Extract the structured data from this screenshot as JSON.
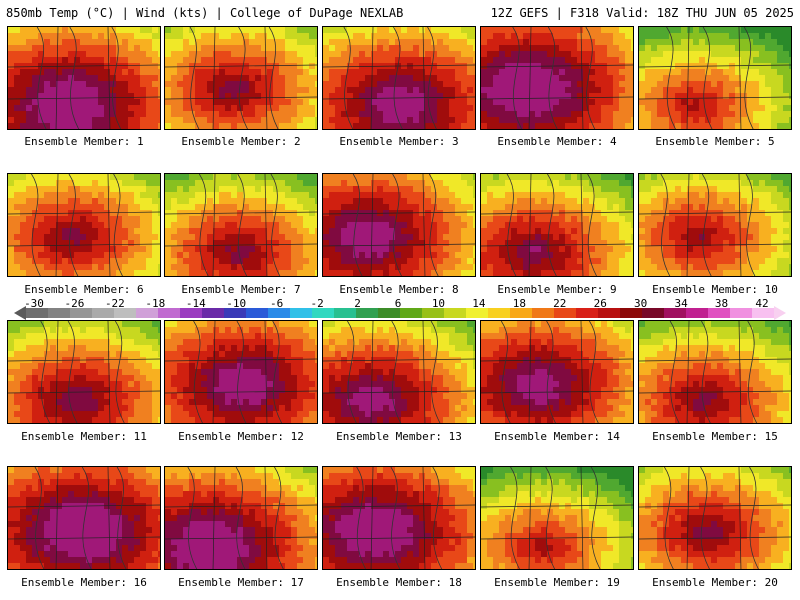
{
  "header": {
    "left": "850mb Temp (°C) | Wind (kts) | College of DuPage NEXLAB",
    "right": "12Z GEFS | F318 Valid: 18Z THU JUN 05 2025"
  },
  "panels": [
    {
      "label": "Ensemble Member: 1",
      "level": 0.78
    },
    {
      "label": "Ensemble Member: 2",
      "level": 0.55
    },
    {
      "label": "Ensemble Member: 3",
      "level": 0.72
    },
    {
      "label": "Ensemble Member: 4",
      "level": 0.8
    },
    {
      "label": "Ensemble Member: 5",
      "level": 0.45
    },
    {
      "label": "Ensemble Member: 6",
      "level": 0.55
    },
    {
      "label": "Ensemble Member: 7",
      "level": 0.55
    },
    {
      "label": "Ensemble Member: 8",
      "level": 0.72
    },
    {
      "label": "Ensemble Member: 9",
      "level": 0.6
    },
    {
      "label": "Ensemble Member: 10",
      "level": 0.5
    },
    {
      "label": "Ensemble Member: 11",
      "level": 0.6
    },
    {
      "label": "Ensemble Member: 12",
      "level": 0.72
    },
    {
      "label": "Ensemble Member: 13",
      "level": 0.68
    },
    {
      "label": "Ensemble Member: 14",
      "level": 0.7
    },
    {
      "label": "Ensemble Member: 15",
      "level": 0.55
    },
    {
      "label": "Ensemble Member: 16",
      "level": 0.8
    },
    {
      "label": "Ensemble Member: 17",
      "level": 0.78
    },
    {
      "label": "Ensemble Member: 18",
      "level": 0.78
    },
    {
      "label": "Ensemble Member: 19",
      "level": 0.45
    },
    {
      "label": "Ensemble Member: 20",
      "level": 0.55
    }
  ],
  "colorbar": {
    "labels": [
      "-30",
      "-26",
      "-22",
      "-18",
      "-14",
      "-10",
      "-6",
      "-2",
      "2",
      "6",
      "10",
      "14",
      "18",
      "22",
      "26",
      "30",
      "34",
      "38",
      "42"
    ],
    "colors": [
      "#6e6e6e",
      "#828282",
      "#969696",
      "#aaaaaa",
      "#bebebe",
      "#d0a0d8",
      "#c06ad0",
      "#9a3cc0",
      "#6a2aa8",
      "#3a3ab8",
      "#2a5ad8",
      "#2a8ae8",
      "#30c0e8",
      "#30d8c0",
      "#28c090",
      "#30a050",
      "#3c8c28",
      "#60a818",
      "#98c018",
      "#c8d820",
      "#f0f030",
      "#f8d020",
      "#f8a818",
      "#f07818",
      "#e84818",
      "#d82018",
      "#b81010",
      "#8c0808",
      "#780828",
      "#a01060",
      "#c02090",
      "#e050c0",
      "#f090e0",
      "#f8c0f0"
    ]
  }
}
